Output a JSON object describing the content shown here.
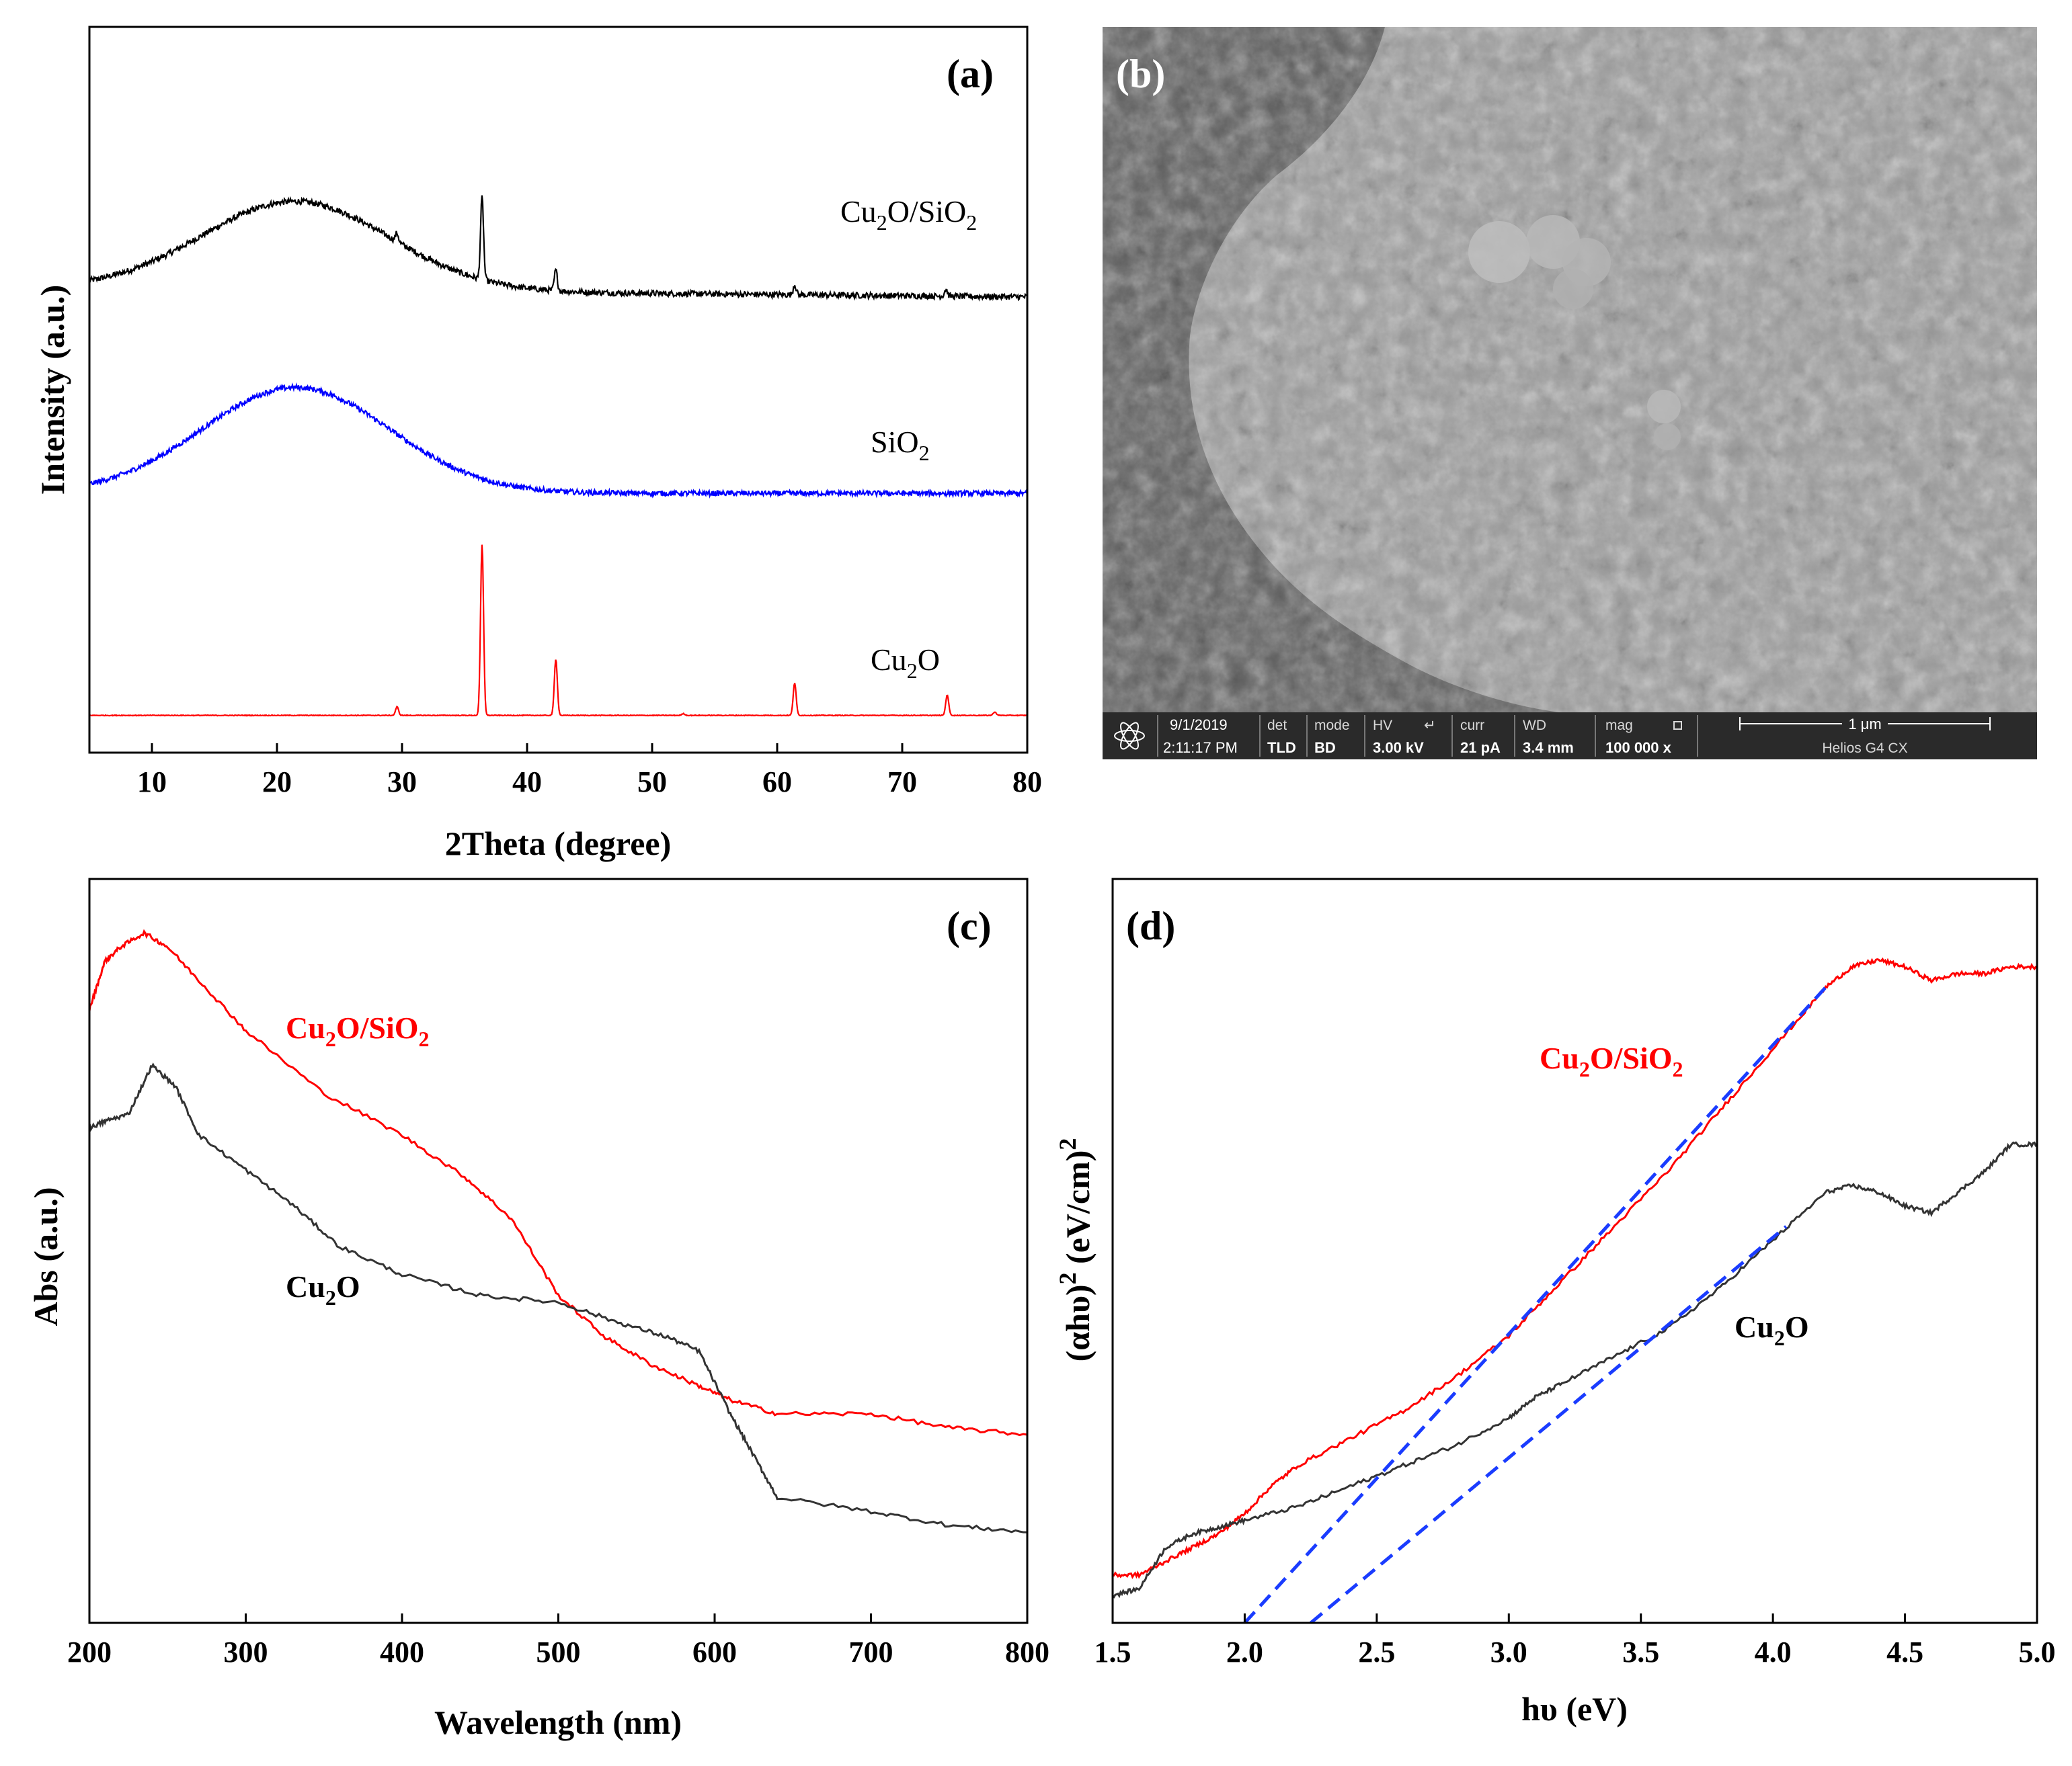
{
  "chart_data": [
    {
      "panel": "a",
      "type": "line",
      "panel_label": "(a)",
      "xlabel": "2Theta  (degree)",
      "ylabel": "Intensity (a.u.)",
      "xlim": [
        5,
        80
      ],
      "xticks": [
        10,
        20,
        30,
        40,
        50,
        60,
        70,
        80
      ],
      "series": [
        {
          "name": "Cu2O/SiO2",
          "label_main": "Cu",
          "label_sub1": "2",
          "label_mid": "O/SiO",
          "label_sub2": "2",
          "color": "#000000",
          "offset": 2.55,
          "broad_peak": {
            "center": 21.5,
            "width": 7.5,
            "height": 0.52
          },
          "peaks": [
            {
              "x": 29.6,
              "h": 0.05
            },
            {
              "x": 36.4,
              "h": 0.48
            },
            {
              "x": 42.3,
              "h": 0.12
            },
            {
              "x": 61.4,
              "h": 0.06
            },
            {
              "x": 73.5,
              "h": 0.04
            }
          ],
          "noise": 0.035,
          "end_level": 0.05
        },
        {
          "name": "SiO2",
          "label_main": "SiO",
          "label_sub1": "2",
          "color": "#0000ff",
          "offset": 1.4,
          "broad_peak": {
            "center": 21.5,
            "width": 7.5,
            "height": 0.62
          },
          "peaks": [],
          "noise": 0.03,
          "end_level": 0.0
        },
        {
          "name": "Cu2O",
          "label_main": "Cu",
          "label_sub1": "2",
          "label_mid": "O",
          "color": "#ff0000",
          "offset": 0.1,
          "broad_peak": null,
          "peaks": [
            {
              "x": 29.6,
              "h": 0.05
            },
            {
              "x": 36.4,
              "h": 1.0
            },
            {
              "x": 42.3,
              "h": 0.33
            },
            {
              "x": 52.5,
              "h": 0.01
            },
            {
              "x": 61.4,
              "h": 0.19
            },
            {
              "x": 73.6,
              "h": 0.12
            },
            {
              "x": 77.4,
              "h": 0.02
            }
          ],
          "noise": 0.004,
          "end_level": 0.0
        }
      ]
    },
    {
      "panel": "c",
      "type": "line",
      "panel_label": "(c)",
      "xlabel": "Wavelength (nm)",
      "ylabel": "Abs (a.u.)",
      "xlim": [
        200,
        800
      ],
      "ylim": [
        0,
        1
      ],
      "xticks": [
        200,
        300,
        400,
        500,
        600,
        700,
        800
      ],
      "series": [
        {
          "name": "Cu2O/SiO2",
          "label_main": "Cu",
          "label_sub1": "2",
          "label_mid": "O/SiO",
          "label_sub2": "2",
          "color": "#ff0000",
          "x": [
            200,
            210,
            220,
            235,
            250,
            275,
            300,
            350,
            400,
            440,
            470,
            500,
            530,
            560,
            590,
            610,
            640,
            700,
            750,
            800
          ],
          "y": [
            0.88,
            0.95,
            0.97,
            0.99,
            0.97,
            0.91,
            0.85,
            0.76,
            0.7,
            0.64,
            0.58,
            0.47,
            0.41,
            0.37,
            0.34,
            0.32,
            0.3,
            0.3,
            0.28,
            0.27
          ]
        },
        {
          "name": "Cu2O",
          "label_main": "Cu",
          "label_sub1": "2",
          "label_mid": "O",
          "color": "#333333",
          "x": [
            200,
            210,
            225,
            240,
            255,
            270,
            300,
            330,
            360,
            400,
            450,
            500,
            540,
            570,
            590,
            610,
            625,
            640,
            700,
            750,
            800
          ],
          "y": [
            0.71,
            0.72,
            0.73,
            0.8,
            0.77,
            0.7,
            0.65,
            0.6,
            0.54,
            0.5,
            0.47,
            0.46,
            0.43,
            0.41,
            0.39,
            0.3,
            0.24,
            0.18,
            0.16,
            0.14,
            0.13
          ]
        }
      ]
    },
    {
      "panel": "d",
      "type": "line",
      "panel_label": "(d)",
      "xlabel": "hυ (eV)",
      "ylabel_main": "(αhυ)",
      "ylabel_sup1": "2",
      "ylabel_mid": " (eV/cm)",
      "ylabel_sup2": "2",
      "xlim": [
        1.5,
        5.0
      ],
      "ylim": [
        0,
        1
      ],
      "xticks": [
        1.5,
        2.0,
        2.5,
        3.0,
        3.5,
        4.0,
        4.5,
        5.0
      ],
      "series": [
        {
          "name": "Cu2O/SiO2",
          "label_main": "Cu",
          "label_sub1": "2",
          "label_mid": "O/SiO",
          "label_sub2": "2",
          "color": "#ff0000",
          "x": [
            1.5,
            1.6,
            1.7,
            1.8,
            1.9,
            2.0,
            2.1,
            2.2,
            2.4,
            2.6,
            2.8,
            3.0,
            3.2,
            3.4,
            3.6,
            3.8,
            4.0,
            4.2,
            4.3,
            4.4,
            4.5,
            4.6,
            4.7,
            4.8,
            4.9,
            5.0
          ],
          "y": [
            0.07,
            0.07,
            0.09,
            0.11,
            0.13,
            0.16,
            0.2,
            0.23,
            0.27,
            0.31,
            0.36,
            0.42,
            0.5,
            0.58,
            0.66,
            0.75,
            0.84,
            0.93,
            0.96,
            0.97,
            0.96,
            0.94,
            0.95,
            0.95,
            0.96,
            0.96
          ]
        },
        {
          "name": "Cu2O",
          "label_main": "Cu",
          "label_sub1": "2",
          "label_mid": "O",
          "color": "#333333",
          "x": [
            1.5,
            1.6,
            1.7,
            1.8,
            1.9,
            2.0,
            2.2,
            2.4,
            2.6,
            2.8,
            3.0,
            3.1,
            3.2,
            3.4,
            3.6,
            3.8,
            4.0,
            4.2,
            4.3,
            4.4,
            4.5,
            4.6,
            4.7,
            4.8,
            4.9,
            5.0
          ],
          "y": [
            0.04,
            0.05,
            0.11,
            0.13,
            0.14,
            0.15,
            0.17,
            0.2,
            0.23,
            0.26,
            0.3,
            0.33,
            0.35,
            0.39,
            0.43,
            0.49,
            0.56,
            0.63,
            0.64,
            0.63,
            0.61,
            0.6,
            0.63,
            0.66,
            0.7,
            0.7
          ]
        }
      ],
      "fit_lines": [
        {
          "name": "Cu2O/SiO2 fit",
          "color": "#1a3cff",
          "x": [
            2.0,
            4.2
          ],
          "y": [
            0.0,
            0.93
          ],
          "intercept_eV": 2.0
        },
        {
          "name": "Cu2O fit",
          "color": "#1a3cff",
          "x": [
            2.25,
            4.05
          ],
          "y": [
            0.0,
            0.58
          ],
          "intercept_eV": 2.25
        }
      ]
    }
  ],
  "sem": {
    "panel_label": "(b)",
    "date": "9/1/2019",
    "time": "2:11:17 PM",
    "det_label": "det",
    "det_value": "TLD",
    "mode_label": "mode",
    "mode_value": "BD",
    "hv_label": "HV",
    "hv_value": "3.00 kV",
    "curr_label": "curr",
    "curr_value": "21 pA",
    "wd_label": "WD",
    "wd_value": "3.4 mm",
    "mag_label": "mag",
    "mag_value": "100 000 x",
    "scalebar_label": "1 μm",
    "instrument": "Helios G4 CX"
  }
}
